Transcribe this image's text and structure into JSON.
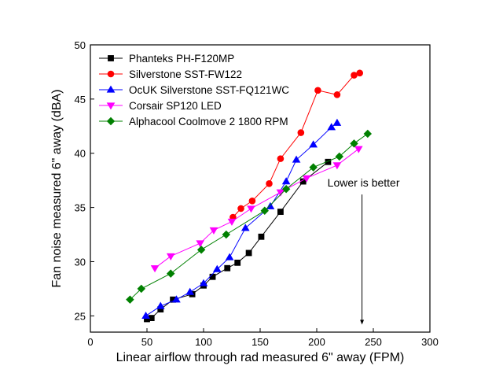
{
  "chart_data": {
    "type": "scatter",
    "title": "",
    "xlabel": "Linear airflow through rad measured 6\" away (FPM)",
    "ylabel": "Fan noise measured 6\" away (dBA)",
    "xlim": [
      0,
      300
    ],
    "ylim": [
      23.5,
      50
    ],
    "x_ticks": [
      "0",
      "50",
      "100",
      "150",
      "200",
      "250",
      "300"
    ],
    "y_ticks": [
      "25",
      "30",
      "35",
      "40",
      "45",
      "50"
    ],
    "grid": false,
    "legend_position": "top-left",
    "annotation": {
      "text": "Lower is better",
      "arrow_from": [
        240,
        36.2
      ],
      "arrow_to": [
        240,
        24.2
      ]
    },
    "series": [
      {
        "name": "Phanteks PH-F120MP",
        "color": "#000000",
        "marker": "square",
        "x": [
          50,
          54,
          62,
          73,
          90,
          100,
          108,
          121,
          130,
          140,
          151,
          168,
          188,
          210
        ],
        "y": [
          24.7,
          24.8,
          25.6,
          26.5,
          27.0,
          27.8,
          28.6,
          29.4,
          29.9,
          30.8,
          32.3,
          34.6,
          37.4,
          39.2
        ]
      },
      {
        "name": "Silverstone SST-FW122",
        "color": "#ff0000",
        "marker": "circle",
        "x": [
          126,
          133,
          143,
          158,
          168,
          186,
          201,
          218,
          233,
          238
        ],
        "y": [
          34.1,
          34.9,
          35.6,
          37.2,
          39.5,
          41.9,
          45.8,
          45.4,
          47.2,
          47.4
        ]
      },
      {
        "name": "OcUK Silverstone SST-FQ121WC",
        "color": "#0000ff",
        "marker": "triangle-up",
        "x": [
          49,
          62,
          76,
          88,
          100,
          112,
          123,
          137,
          159,
          173,
          182,
          197,
          213,
          218
        ],
        "y": [
          25.0,
          25.9,
          26.5,
          27.2,
          28.0,
          29.3,
          30.4,
          33.1,
          35.1,
          37.4,
          39.4,
          40.8,
          42.4,
          42.8
        ]
      },
      {
        "name": "Corsair SP120 LED",
        "color": "#ff00ff",
        "marker": "triangle-down",
        "x": [
          57,
          71,
          97,
          109,
          125,
          142,
          168,
          191,
          218,
          237
        ],
        "y": [
          29.4,
          30.5,
          31.7,
          32.9,
          33.7,
          34.9,
          36.4,
          37.7,
          38.9,
          40.4
        ]
      },
      {
        "name": "Alphacool Coolmove 2 1800 RPM",
        "color": "#008000",
        "marker": "diamond",
        "x": [
          35,
          45,
          71,
          98,
          120,
          154,
          173,
          197,
          220,
          233,
          245
        ],
        "y": [
          26.5,
          27.5,
          28.9,
          31.1,
          32.5,
          34.7,
          36.7,
          38.7,
          39.7,
          40.9,
          41.8
        ]
      }
    ]
  }
}
